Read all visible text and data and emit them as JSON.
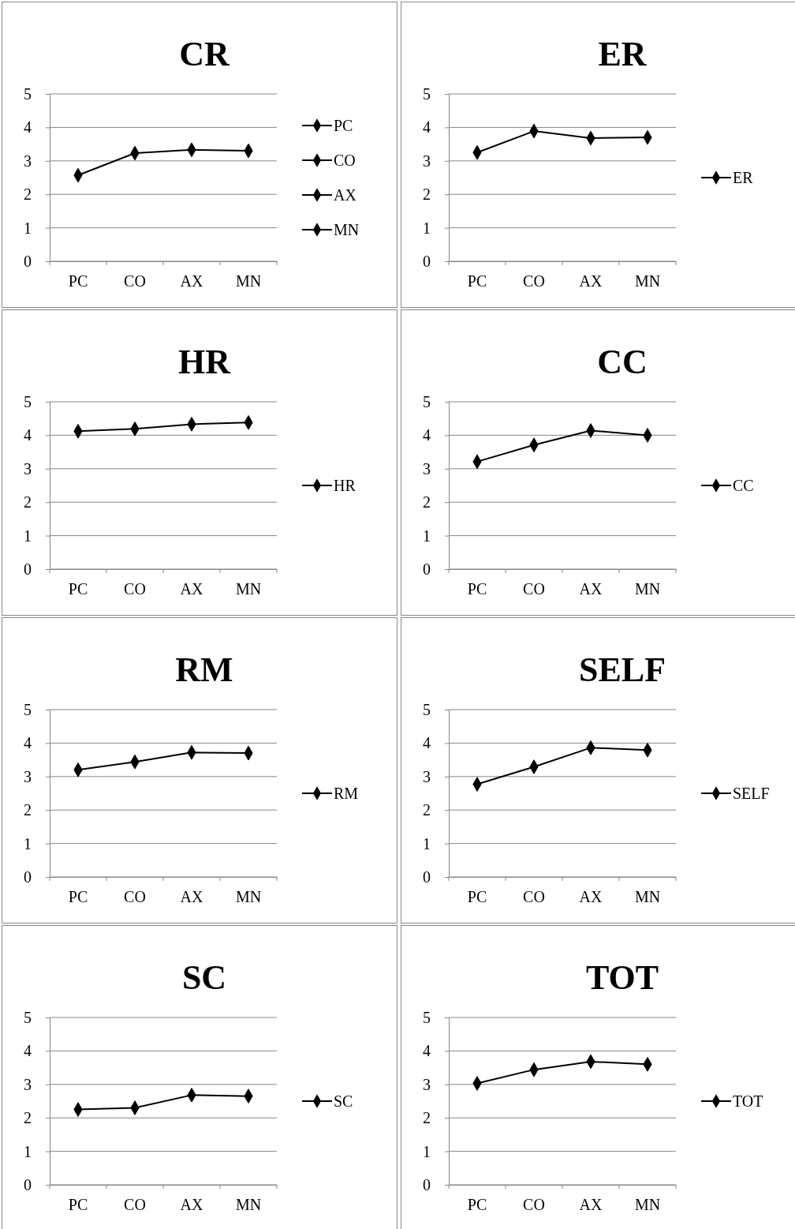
{
  "chart_data": [
    {
      "type": "line",
      "title": "CR",
      "categories": [
        "PC",
        "CO",
        "AX",
        "MN"
      ],
      "ylim": [
        0,
        5
      ],
      "yticks": [
        0,
        1,
        2,
        3,
        4,
        5
      ],
      "grid": "y",
      "legend": "right",
      "marker": "diamond",
      "series": [
        {
          "color": "#000000",
          "values": [
            2.57,
            3.23,
            3.33,
            3.3
          ],
          "marker": "none"
        },
        {
          "name": "PC",
          "color": "#000000",
          "values": [
            2.57,
            null,
            null,
            null
          ]
        },
        {
          "name": "CO",
          "color": "#000000",
          "values": [
            null,
            3.23,
            null,
            null
          ]
        },
        {
          "name": "AX",
          "color": "#000000",
          "values": [
            null,
            null,
            3.33,
            null
          ]
        },
        {
          "name": "MN",
          "color": "#000000",
          "values": [
            null,
            null,
            null,
            3.3
          ]
        }
      ]
    },
    {
      "type": "line",
      "title": "ER",
      "categories": [
        "PC",
        "CO",
        "AX",
        "MN"
      ],
      "ylim": [
        0,
        5
      ],
      "yticks": [
        0,
        1,
        2,
        3,
        4,
        5
      ],
      "grid": "y",
      "legend": "right",
      "marker": "diamond",
      "series": [
        {
          "name": "ER",
          "color": "#000000",
          "values": [
            3.25,
            3.89,
            3.68,
            3.7
          ]
        }
      ]
    },
    {
      "type": "line",
      "title": "HR",
      "categories": [
        "PC",
        "CO",
        "AX",
        "MN"
      ],
      "ylim": [
        0,
        5
      ],
      "yticks": [
        0,
        1,
        2,
        3,
        4,
        5
      ],
      "grid": "y",
      "legend": "right",
      "marker": "diamond",
      "series": [
        {
          "name": "HR",
          "color": "#000000",
          "values": [
            4.12,
            4.19,
            4.33,
            4.38
          ]
        }
      ]
    },
    {
      "type": "line",
      "title": "CC",
      "categories": [
        "PC",
        "CO",
        "AX",
        "MN"
      ],
      "ylim": [
        0,
        5
      ],
      "yticks": [
        0,
        1,
        2,
        3,
        4,
        5
      ],
      "grid": "y",
      "legend": "right",
      "marker": "diamond",
      "series": [
        {
          "name": "CC",
          "color": "#000000",
          "values": [
            3.21,
            3.71,
            4.14,
            4.0
          ]
        }
      ]
    },
    {
      "type": "line",
      "title": "RM",
      "categories": [
        "PC",
        "CO",
        "AX",
        "MN"
      ],
      "ylim": [
        0,
        5
      ],
      "yticks": [
        0,
        1,
        2,
        3,
        4,
        5
      ],
      "grid": "y",
      "legend": "right",
      "marker": "diamond",
      "series": [
        {
          "name": "RM",
          "color": "#000000",
          "values": [
            3.2,
            3.44,
            3.72,
            3.7
          ]
        }
      ]
    },
    {
      "type": "line",
      "title": "SELF",
      "categories": [
        "PC",
        "CO",
        "AX",
        "MN"
      ],
      "ylim": [
        0,
        5
      ],
      "yticks": [
        0,
        1,
        2,
        3,
        4,
        5
      ],
      "grid": "y",
      "legend": "right",
      "marker": "diamond",
      "series": [
        {
          "name": "SELF",
          "color": "#000000",
          "values": [
            2.77,
            3.29,
            3.86,
            3.79
          ]
        }
      ]
    },
    {
      "type": "line",
      "title": "SC",
      "categories": [
        "PC",
        "CO",
        "AX",
        "MN"
      ],
      "ylim": [
        0,
        5
      ],
      "yticks": [
        0,
        1,
        2,
        3,
        4,
        5
      ],
      "grid": "y",
      "legend": "right",
      "marker": "diamond",
      "series": [
        {
          "name": "SC",
          "color": "#000000",
          "values": [
            2.25,
            2.3,
            2.68,
            2.65
          ]
        }
      ]
    },
    {
      "type": "line",
      "title": "TOT",
      "categories": [
        "PC",
        "CO",
        "AX",
        "MN"
      ],
      "ylim": [
        0,
        5
      ],
      "yticks": [
        0,
        1,
        2,
        3,
        4,
        5
      ],
      "grid": "y",
      "legend": "right",
      "marker": "diamond",
      "series": [
        {
          "name": "TOT",
          "color": "#000000",
          "values": [
            3.03,
            3.44,
            3.68,
            3.6
          ]
        }
      ]
    }
  ]
}
